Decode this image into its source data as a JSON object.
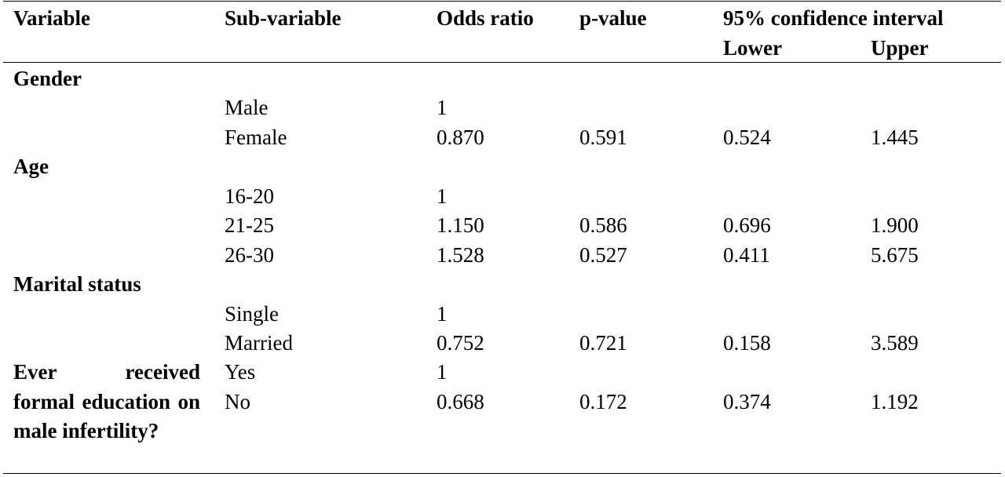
{
  "header": {
    "variable": "Variable",
    "sub_variable": "Sub-variable",
    "odds_ratio": "Odds ratio",
    "p_value": "p-value",
    "ci": "95% confidence interval",
    "lower": "Lower",
    "upper": "Upper"
  },
  "groups": [
    {
      "name": "Gender",
      "rows": [
        {
          "sub": "Male",
          "or": "1",
          "p": "",
          "lower": "",
          "upper": ""
        },
        {
          "sub": "Female",
          "or": "0.870",
          "p": "0.591",
          "lower": "0.524",
          "upper": "1.445"
        }
      ]
    },
    {
      "name": "Age",
      "rows": [
        {
          "sub": "16-20",
          "or": "1",
          "p": "",
          "lower": "",
          "upper": ""
        },
        {
          "sub": "21-25",
          "or": "1.150",
          "p": "0.586",
          "lower": "0.696",
          "upper": "1.900"
        },
        {
          "sub": "26-30",
          "or": "1.528",
          "p": "0.527",
          "lower": "0.411",
          "upper": "5.675"
        }
      ]
    },
    {
      "name": "Marital status",
      "rows": [
        {
          "sub": "Single",
          "or": "1",
          "p": "",
          "lower": "",
          "upper": ""
        },
        {
          "sub": "Married",
          "or": "0.752",
          "p": "0.721",
          "lower": "0.158",
          "upper": "3.589"
        }
      ]
    },
    {
      "name": "Ever received formal education on male infertility?",
      "rows": [
        {
          "sub": "Yes",
          "or": "1",
          "p": "",
          "lower": "",
          "upper": ""
        },
        {
          "sub": "No",
          "or": "0.668",
          "p": "0.172",
          "lower": "0.374",
          "upper": "1.192"
        }
      ]
    }
  ]
}
